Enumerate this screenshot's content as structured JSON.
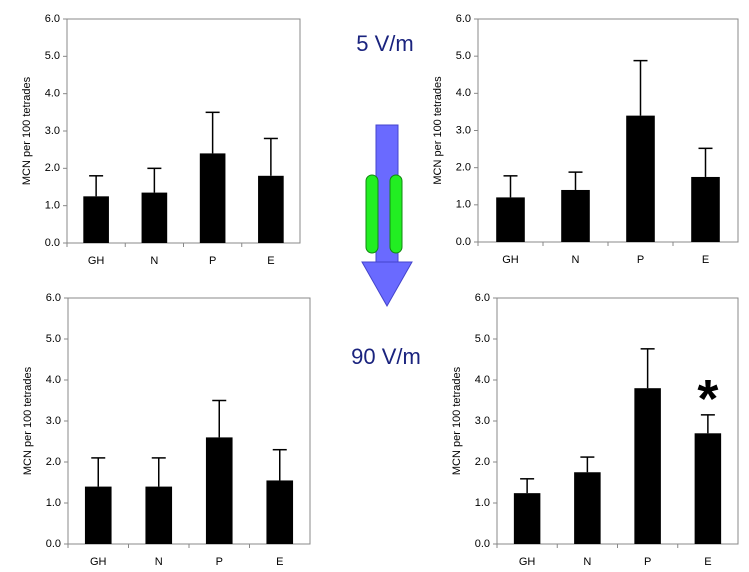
{
  "annotations": [
    "5 V/m",
    "90 V/m"
  ],
  "chart_data": [
    {
      "type": "bar",
      "ylabel": "MCN per 100 tetrades",
      "categories": [
        "GH",
        "N",
        "P",
        "E"
      ],
      "values": [
        1.25,
        1.35,
        2.4,
        1.8
      ],
      "errors": [
        0.55,
        0.65,
        1.1,
        1.0
      ],
      "color": "#000000",
      "ylim": [
        0,
        6
      ],
      "yticks": [
        {
          "value": 0,
          "label": "0.0"
        },
        {
          "value": 1,
          "label": "1.0"
        },
        {
          "value": 2,
          "label": "2.0"
        },
        {
          "value": 3,
          "label": "3.0"
        },
        {
          "value": 4,
          "label": "4.0"
        },
        {
          "value": 5,
          "label": "5.0"
        },
        {
          "value": 6,
          "label": "6.0"
        }
      ]
    },
    {
      "type": "bar",
      "ylabel": "MCN per 100 tetrades",
      "categories": [
        "GH",
        "N",
        "P",
        "E"
      ],
      "values": [
        1.2,
        1.4,
        3.4,
        1.75
      ],
      "errors": [
        0.58,
        0.48,
        1.48,
        0.77
      ],
      "color": "#000000",
      "ylim": [
        0,
        6
      ],
      "yticks": [
        {
          "value": 0,
          "label": "0.0"
        },
        {
          "value": 1,
          "label": "1.0"
        },
        {
          "value": 2,
          "label": "2.0"
        },
        {
          "value": 3,
          "label": "3.0"
        },
        {
          "value": 4,
          "label": "4.0"
        },
        {
          "value": 5,
          "label": "5.0"
        },
        {
          "value": 6,
          "label": "6.0"
        }
      ]
    },
    {
      "type": "bar",
      "ylabel": "MCN per 100 tetrades",
      "categories": [
        "GH",
        "N",
        "P",
        "E"
      ],
      "values": [
        1.4,
        1.4,
        2.6,
        1.55
      ],
      "errors": [
        0.7,
        0.7,
        0.9,
        0.75
      ],
      "color": "#000000",
      "ylim": [
        0,
        6
      ],
      "yticks": [
        {
          "value": 0,
          "label": "0.0"
        },
        {
          "value": 1,
          "label": "1.0"
        },
        {
          "value": 2,
          "label": "2.0"
        },
        {
          "value": 3,
          "label": "3.0"
        },
        {
          "value": 4,
          "label": "4.0"
        },
        {
          "value": 5,
          "label": "5.0"
        },
        {
          "value": 6,
          "label": "6.0"
        }
      ]
    },
    {
      "type": "bar",
      "ylabel": "MCN per 100 tetrades",
      "categories": [
        "GH",
        "N",
        "P",
        "E"
      ],
      "values": [
        1.24,
        1.75,
        3.8,
        2.7
      ],
      "errors": [
        0.35,
        0.37,
        0.96,
        0.45
      ],
      "color": "#000000",
      "annotation": "*",
      "ylim": [
        0,
        6
      ],
      "yticks": [
        {
          "value": 0,
          "label": "0.0"
        },
        {
          "value": 1,
          "label": "1.0"
        },
        {
          "value": 2,
          "label": "2.0"
        },
        {
          "value": 3,
          "label": "3.0"
        },
        {
          "value": 4,
          "label": "4.0"
        },
        {
          "value": 5,
          "label": "5.0"
        },
        {
          "value": 6,
          "label": "6.0"
        }
      ]
    }
  ]
}
